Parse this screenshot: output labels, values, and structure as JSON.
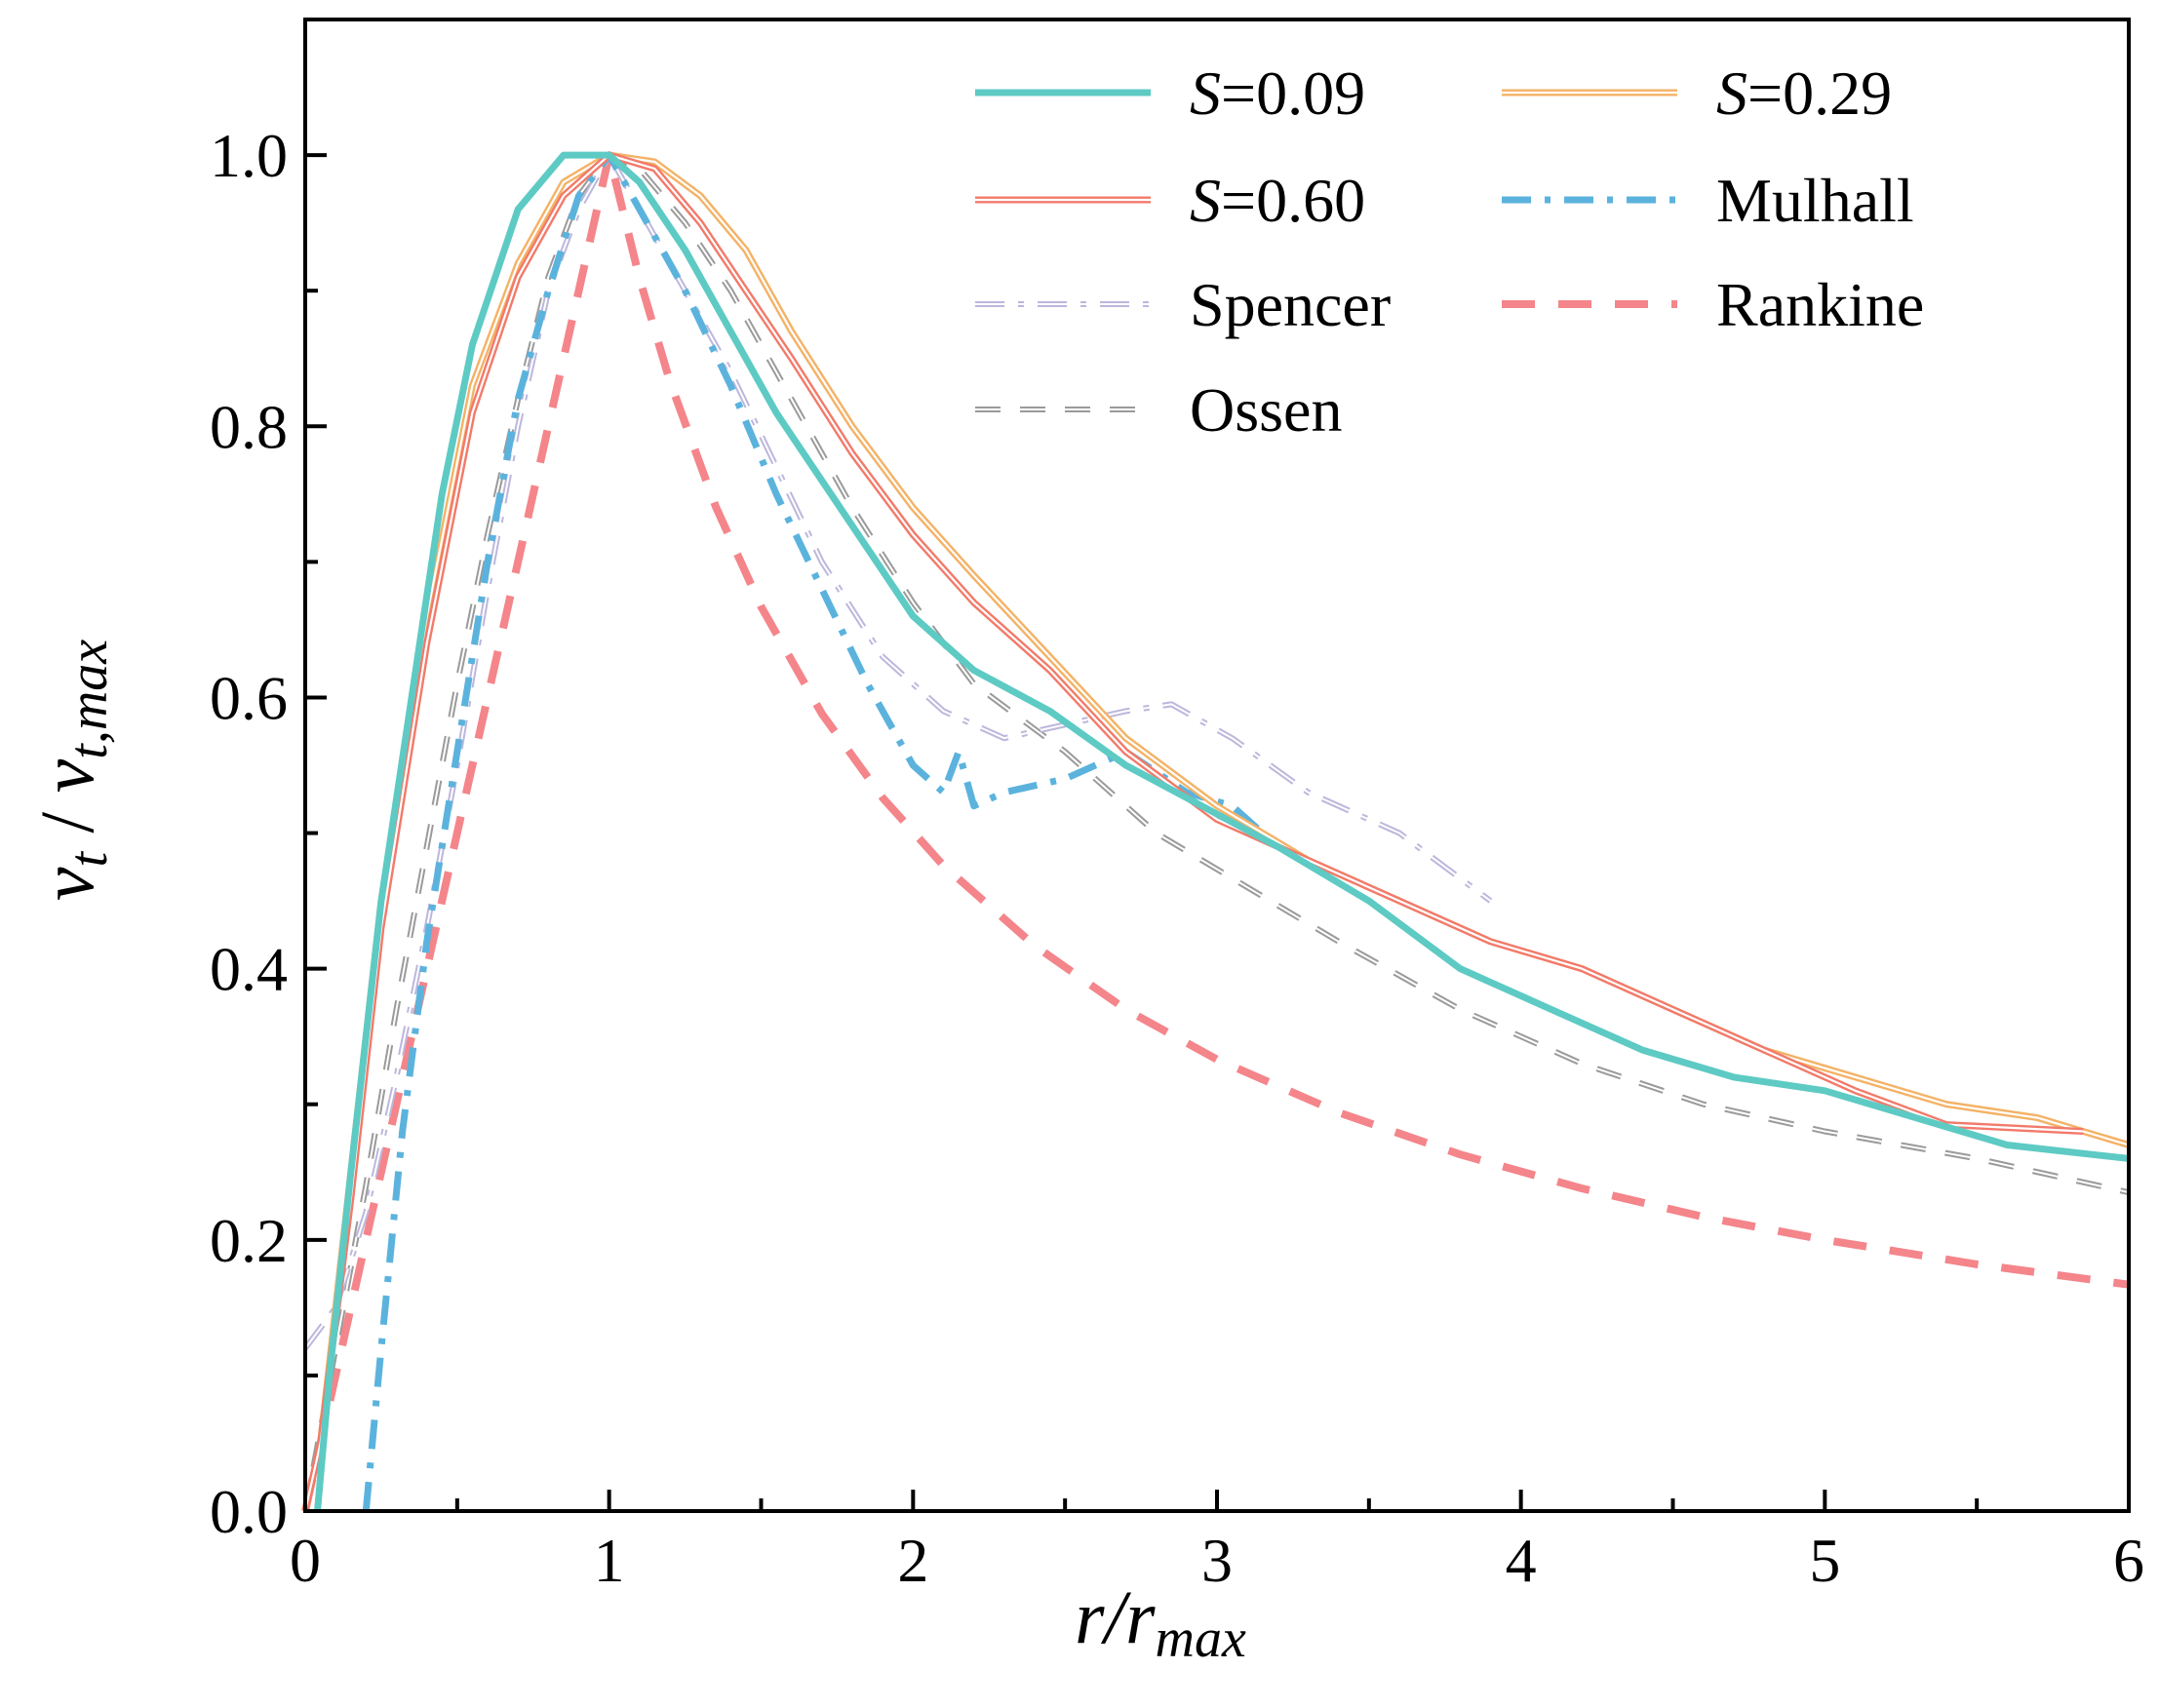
{
  "chart_data": {
    "type": "line",
    "title": "",
    "xlabel": "r/r_max",
    "xlabel_parts": {
      "main": "r/r",
      "sub": "max"
    },
    "ylabel": "v_t / v_t,max",
    "ylabel_parts": {
      "v1": "v",
      "s1": "t",
      "slash": " / ",
      "v2": "v",
      "s2": "t,max"
    },
    "xlim": [
      0,
      6
    ],
    "ylim": [
      0,
      1.1
    ],
    "xticks": [
      {
        "value": 0,
        "label": "0"
      },
      {
        "value": 1,
        "label": "1"
      },
      {
        "value": 2,
        "label": "2"
      },
      {
        "value": 3,
        "label": "3"
      },
      {
        "value": 4,
        "label": "4"
      },
      {
        "value": 5,
        "label": "5"
      },
      {
        "value": 6,
        "label": "6"
      }
    ],
    "yticks": [
      {
        "value": 0.0,
        "label": "0.0"
      },
      {
        "value": 0.2,
        "label": "0.2"
      },
      {
        "value": 0.4,
        "label": "0.4"
      },
      {
        "value": 0.6,
        "label": "0.6"
      },
      {
        "value": 0.8,
        "label": "0.8"
      },
      {
        "value": 1.0,
        "label": "1.0"
      }
    ],
    "grid": false,
    "legend_position": "top-right",
    "series": [
      {
        "name": "S=0.09",
        "legend_italic": "S",
        "legend_rest": "=0.09",
        "color": "#5ECAC4",
        "style": "solid",
        "x": [
          0.04,
          0.08,
          0.15,
          0.25,
          0.35,
          0.45,
          0.55,
          0.7,
          0.85,
          1.0,
          1.1,
          1.25,
          1.4,
          1.55,
          1.7,
          1.85,
          2.0,
          2.2,
          2.45,
          2.7,
          2.95,
          3.2,
          3.5,
          3.8,
          4.1,
          4.4,
          4.7,
          5.0,
          5.3,
          5.6,
          6.0
        ],
        "y": [
          0.0,
          0.1,
          0.25,
          0.45,
          0.6,
          0.75,
          0.86,
          0.96,
          1.0,
          1.0,
          0.98,
          0.93,
          0.87,
          0.81,
          0.76,
          0.71,
          0.66,
          0.62,
          0.59,
          0.55,
          0.52,
          0.49,
          0.45,
          0.4,
          0.37,
          0.34,
          0.32,
          0.31,
          0.29,
          0.27,
          0.26
        ]
      },
      {
        "name": "S=0.29",
        "legend_italic": "S",
        "legend_rest": "=0.29",
        "color": "#F4B266",
        "style": "double",
        "x": [
          0.0,
          0.05,
          0.15,
          0.25,
          0.4,
          0.55,
          0.7,
          0.85,
          1.0,
          1.15,
          1.3,
          1.45,
          1.6,
          1.8,
          2.0,
          2.2,
          2.45,
          2.7,
          3.0,
          3.3,
          3.6,
          3.9,
          4.2,
          4.5,
          4.8,
          5.1,
          5.4,
          5.7,
          6.0
        ],
        "y": [
          0.0,
          0.05,
          0.25,
          0.45,
          0.66,
          0.83,
          0.92,
          0.98,
          1.0,
          0.995,
          0.97,
          0.93,
          0.87,
          0.8,
          0.74,
          0.69,
          0.63,
          0.57,
          0.52,
          0.48,
          0.45,
          0.42,
          0.4,
          0.37,
          0.34,
          0.32,
          0.3,
          0.29,
          0.27
        ]
      },
      {
        "name": "S=0.60",
        "legend_italic": "S",
        "legend_rest": "=0.60",
        "color": "#F27A6A",
        "style": "double",
        "x": [
          0.0,
          0.05,
          0.15,
          0.25,
          0.4,
          0.55,
          0.7,
          0.85,
          1.0,
          1.15,
          1.3,
          1.45,
          1.6,
          1.8,
          2.0,
          2.2,
          2.45,
          2.7,
          3.0,
          3.3,
          3.6,
          3.9,
          4.2,
          4.5,
          4.8,
          5.1,
          5.4,
          5.85
        ],
        "y": [
          0.0,
          0.05,
          0.23,
          0.43,
          0.64,
          0.81,
          0.91,
          0.97,
          1.0,
          0.99,
          0.95,
          0.9,
          0.85,
          0.78,
          0.72,
          0.67,
          0.62,
          0.56,
          0.51,
          0.48,
          0.45,
          0.42,
          0.4,
          0.37,
          0.34,
          0.31,
          0.285,
          0.28
        ]
      },
      {
        "name": "Mulhall",
        "legend_italic": "",
        "legend_rest": "Mulhall",
        "color": "#5BB3DD",
        "style": "dashdot",
        "x": [
          0.2,
          0.25,
          0.32,
          0.4,
          0.5,
          0.6,
          0.7,
          0.8,
          0.9,
          1.0,
          1.1,
          1.25,
          1.4,
          1.55,
          1.7,
          1.85,
          2.0,
          2.1,
          2.15,
          2.2,
          2.3,
          2.5,
          2.7,
          2.9,
          3.05,
          3.2
        ],
        "y": [
          0.0,
          0.12,
          0.28,
          0.42,
          0.56,
          0.7,
          0.82,
          0.9,
          0.97,
          1.0,
          0.96,
          0.9,
          0.83,
          0.75,
          0.68,
          0.61,
          0.55,
          0.53,
          0.56,
          0.52,
          0.53,
          0.54,
          0.56,
          0.53,
          0.52,
          0.49
        ]
      },
      {
        "name": "Spencer",
        "legend_italic": "",
        "legend_rest": "Spencer",
        "color": "#BCB7DC",
        "style": "dashdot-double",
        "x": [
          0.0,
          0.1,
          0.2,
          0.3,
          0.4,
          0.5,
          0.6,
          0.7,
          0.8,
          0.9,
          1.0,
          1.1,
          1.25,
          1.4,
          1.55,
          1.7,
          1.9,
          2.1,
          2.3,
          2.5,
          2.7,
          2.85,
          3.05,
          3.3,
          3.6,
          3.9
        ],
        "y": [
          0.12,
          0.15,
          0.22,
          0.32,
          0.43,
          0.55,
          0.68,
          0.8,
          0.9,
          0.96,
          1.0,
          0.96,
          0.9,
          0.84,
          0.77,
          0.7,
          0.63,
          0.59,
          0.57,
          0.58,
          0.59,
          0.595,
          0.57,
          0.53,
          0.5,
          0.45
        ]
      },
      {
        "name": "Rankine",
        "legend_italic": "",
        "legend_rest": "Rankine",
        "color": "#F4858A",
        "style": "dashed",
        "x": [
          0.0,
          0.1,
          0.2,
          0.3,
          0.4,
          0.5,
          0.6,
          0.7,
          0.8,
          0.9,
          1.0,
          1.1,
          1.2,
          1.35,
          1.5,
          1.7,
          1.9,
          2.1,
          2.4,
          2.7,
          3.0,
          3.4,
          3.8,
          4.2,
          4.6,
          5.0,
          5.5,
          6.0
        ],
        "y": [
          0.0,
          0.1,
          0.2,
          0.3,
          0.4,
          0.5,
          0.6,
          0.7,
          0.8,
          0.9,
          1.0,
          0.909,
          0.833,
          0.741,
          0.667,
          0.588,
          0.526,
          0.476,
          0.417,
          0.37,
          0.333,
          0.294,
          0.263,
          0.238,
          0.217,
          0.2,
          0.182,
          0.167
        ]
      },
      {
        "name": "Ossen",
        "legend_italic": "",
        "legend_rest": "Ossen",
        "color": "#9A9A9A",
        "style": "dashed-double",
        "x": [
          0.0,
          0.1,
          0.2,
          0.3,
          0.4,
          0.5,
          0.6,
          0.7,
          0.8,
          0.9,
          1.0,
          1.1,
          1.25,
          1.4,
          1.6,
          1.8,
          2.0,
          2.2,
          2.5,
          2.8,
          3.1,
          3.4,
          3.8,
          4.2,
          4.6,
          5.0,
          5.5,
          6.0
        ],
        "y": [
          0.0,
          0.12,
          0.24,
          0.37,
          0.49,
          0.61,
          0.72,
          0.82,
          0.91,
          0.97,
          1.0,
          0.99,
          0.95,
          0.9,
          0.82,
          0.74,
          0.67,
          0.61,
          0.56,
          0.5,
          0.46,
          0.42,
          0.37,
          0.33,
          0.3,
          0.28,
          0.26,
          0.235
        ]
      }
    ]
  }
}
